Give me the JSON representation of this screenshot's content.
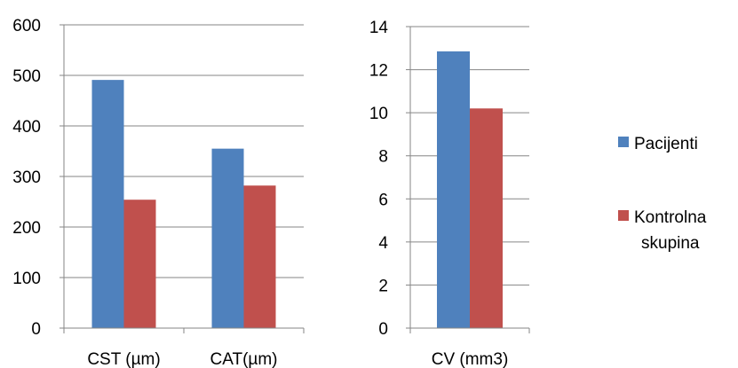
{
  "chart_data": [
    {
      "type": "bar",
      "categories": [
        "CST (µm)",
        "CAT(µm)"
      ],
      "series": [
        {
          "name": "Pacijenti",
          "values": [
            491,
            355
          ]
        },
        {
          "name": "Kontrolna skupina",
          "values": [
            254,
            282
          ]
        }
      ],
      "ylim": [
        0,
        600
      ],
      "yticks": [
        0,
        100,
        200,
        300,
        400,
        500,
        600
      ],
      "grid": true
    },
    {
      "type": "bar",
      "categories": [
        "CV (mm3)"
      ],
      "series": [
        {
          "name": "Pacijenti",
          "values": [
            12.85
          ]
        },
        {
          "name": "Kontrolna skupina",
          "values": [
            10.2
          ]
        }
      ],
      "ylim": [
        0,
        14
      ],
      "yticks": [
        0,
        2,
        4,
        6,
        8,
        10,
        12,
        14
      ],
      "grid": true
    }
  ],
  "legend": {
    "placement": "right",
    "items": [
      {
        "label": "Pacijenti",
        "color": "#4F81BD"
      },
      {
        "label": "Kontrolna skupina",
        "label_lines": [
          "Kontrolna",
          "skupina"
        ],
        "color": "#C0504D"
      }
    ]
  },
  "colors": {
    "series": [
      "#4F81BD",
      "#C0504D"
    ],
    "grid": "#868686",
    "axis": "#868686"
  }
}
